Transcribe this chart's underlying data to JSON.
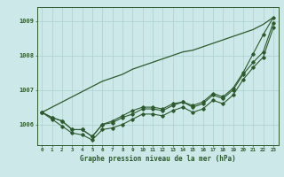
{
  "title": "Graphe pression niveau de la mer (hPa)",
  "background_color": "#cce8e8",
  "plot_bg_color": "#cce8e8",
  "grid_color": "#aacfcf",
  "line_color": "#2d5a2d",
  "x_ticks": [
    0,
    1,
    2,
    3,
    4,
    5,
    6,
    7,
    8,
    9,
    10,
    11,
    12,
    13,
    14,
    15,
    16,
    17,
    18,
    19,
    20,
    21,
    22,
    23
  ],
  "xlim": [
    -0.5,
    23.5
  ],
  "ylim": [
    1005.4,
    1009.4
  ],
  "y_ticks": [
    1006,
    1007,
    1008,
    1009
  ],
  "series_upper": [
    1006.35,
    1006.2,
    1006.1,
    1005.85,
    1005.85,
    1005.65,
    1006.0,
    1006.1,
    1006.25,
    1006.4,
    1006.5,
    1006.5,
    1006.45,
    1006.6,
    1006.65,
    1006.55,
    1006.65,
    1006.9,
    1006.8,
    1007.05,
    1007.5,
    1008.05,
    1008.6,
    1009.1
  ],
  "series_mid1": [
    1006.35,
    1006.2,
    1006.1,
    1005.85,
    1005.85,
    1005.65,
    1006.0,
    1006.05,
    1006.2,
    1006.3,
    1006.45,
    1006.45,
    1006.4,
    1006.55,
    1006.65,
    1006.5,
    1006.6,
    1006.85,
    1006.75,
    1007.0,
    1007.45,
    1007.8,
    1008.1,
    1008.95
  ],
  "series_low": [
    1006.35,
    1006.15,
    1005.95,
    1005.75,
    1005.7,
    1005.55,
    1005.85,
    1005.9,
    1006.0,
    1006.15,
    1006.3,
    1006.3,
    1006.25,
    1006.4,
    1006.5,
    1006.35,
    1006.45,
    1006.7,
    1006.6,
    1006.85,
    1007.3,
    1007.65,
    1007.95,
    1008.8
  ],
  "series_straight": [
    1006.35,
    1006.5,
    1006.65,
    1006.8,
    1006.95,
    1007.1,
    1007.25,
    1007.35,
    1007.45,
    1007.6,
    1007.7,
    1007.8,
    1007.9,
    1008.0,
    1008.1,
    1008.15,
    1008.25,
    1008.35,
    1008.45,
    1008.55,
    1008.65,
    1008.75,
    1008.9,
    1009.1
  ]
}
